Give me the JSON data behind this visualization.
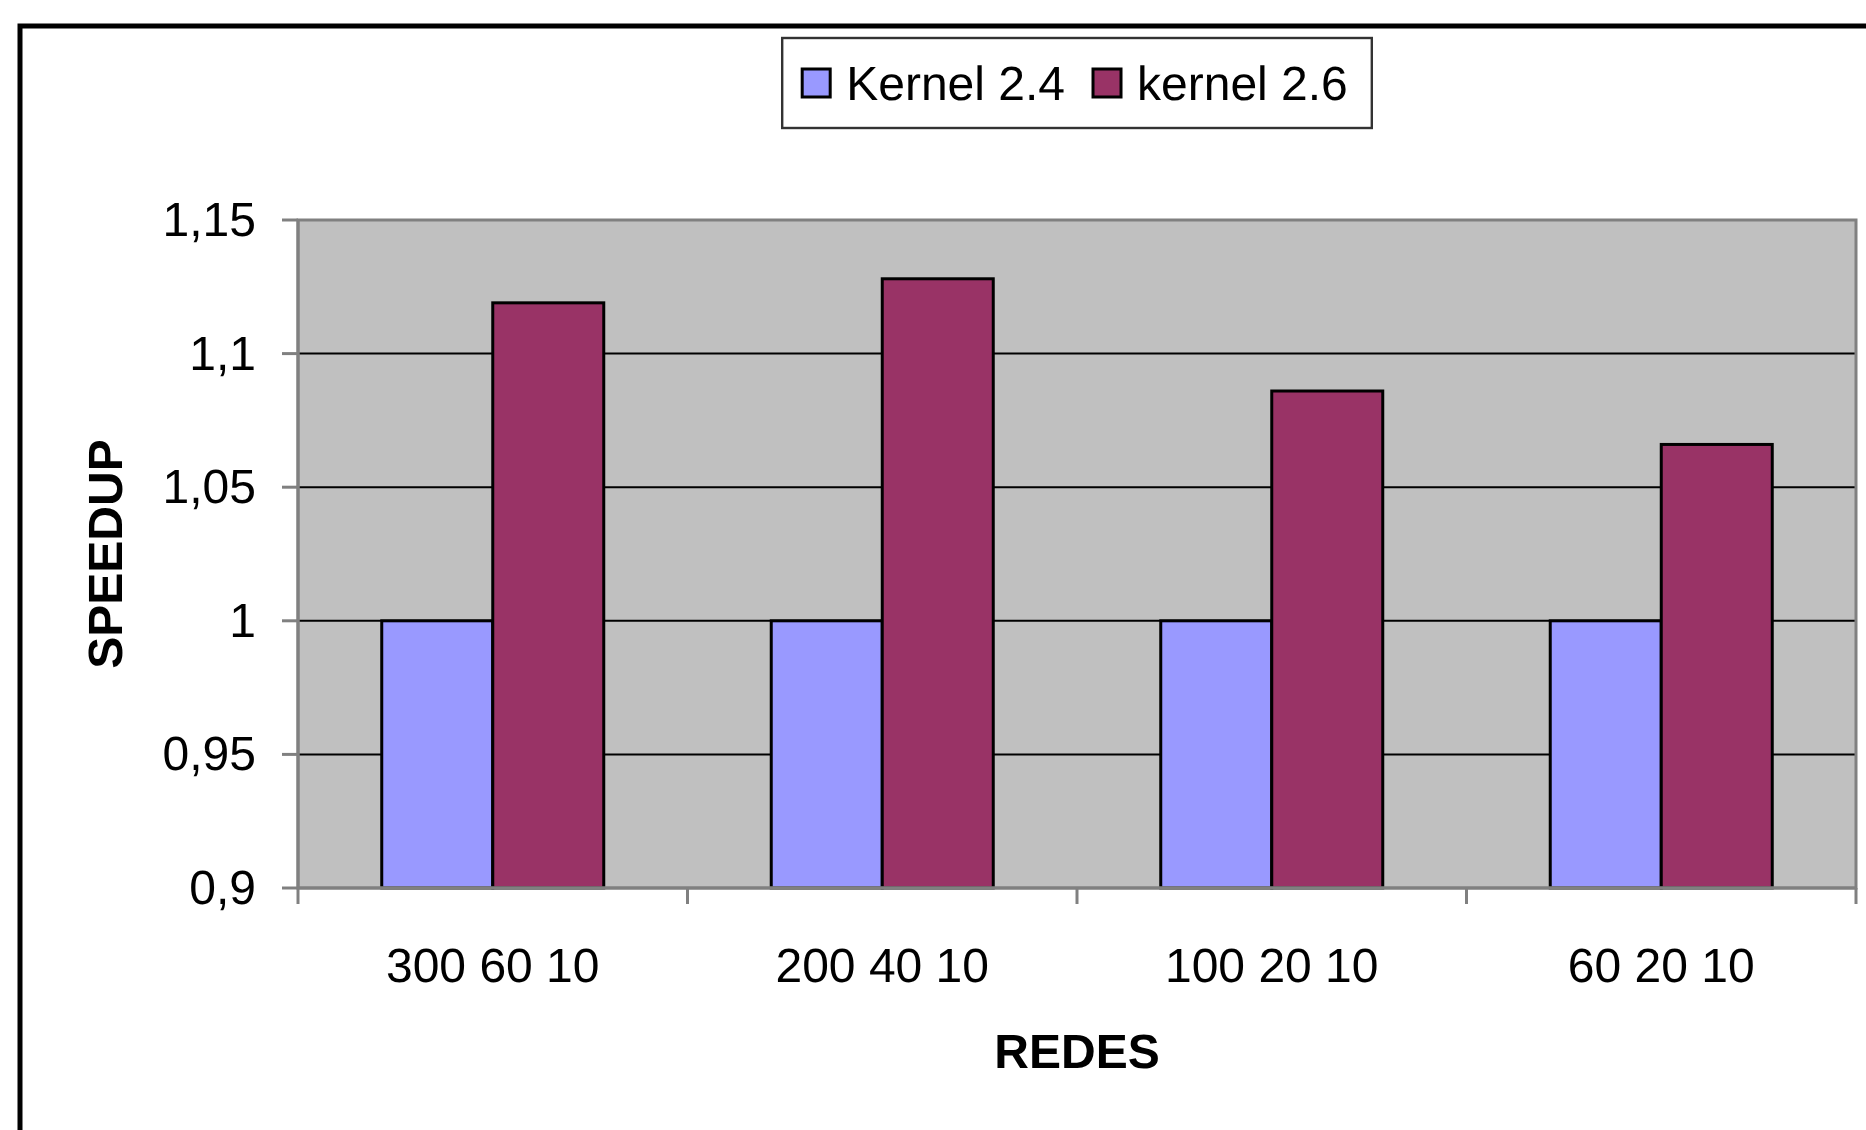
{
  "chart_data": {
    "type": "bar",
    "categories": [
      "300 60 10",
      "200 40 10",
      "100 20 10",
      "60 20 10"
    ],
    "series": [
      {
        "name": "Kernel 2.4",
        "color": "#9999ff",
        "values": [
          1,
          1,
          1,
          1
        ]
      },
      {
        "name": "kernel 2.6",
        "color": "#993366",
        "values": [
          1.119,
          1.128,
          1.086,
          1.066
        ]
      }
    ],
    "xlabel": "REDES",
    "ylabel": "SPEEDUP",
    "ylim": [
      0.9,
      1.15
    ],
    "yticks": [
      {
        "value": 0.9,
        "label": "0,9"
      },
      {
        "value": 0.95,
        "label": "0,95"
      },
      1,
      {
        "value": 1.05,
        "label": "1,05"
      },
      {
        "value": 1.1,
        "label": "1,1"
      },
      {
        "value": 1.15,
        "label": "1,15"
      }
    ],
    "grid": "y",
    "legend": "top"
  }
}
